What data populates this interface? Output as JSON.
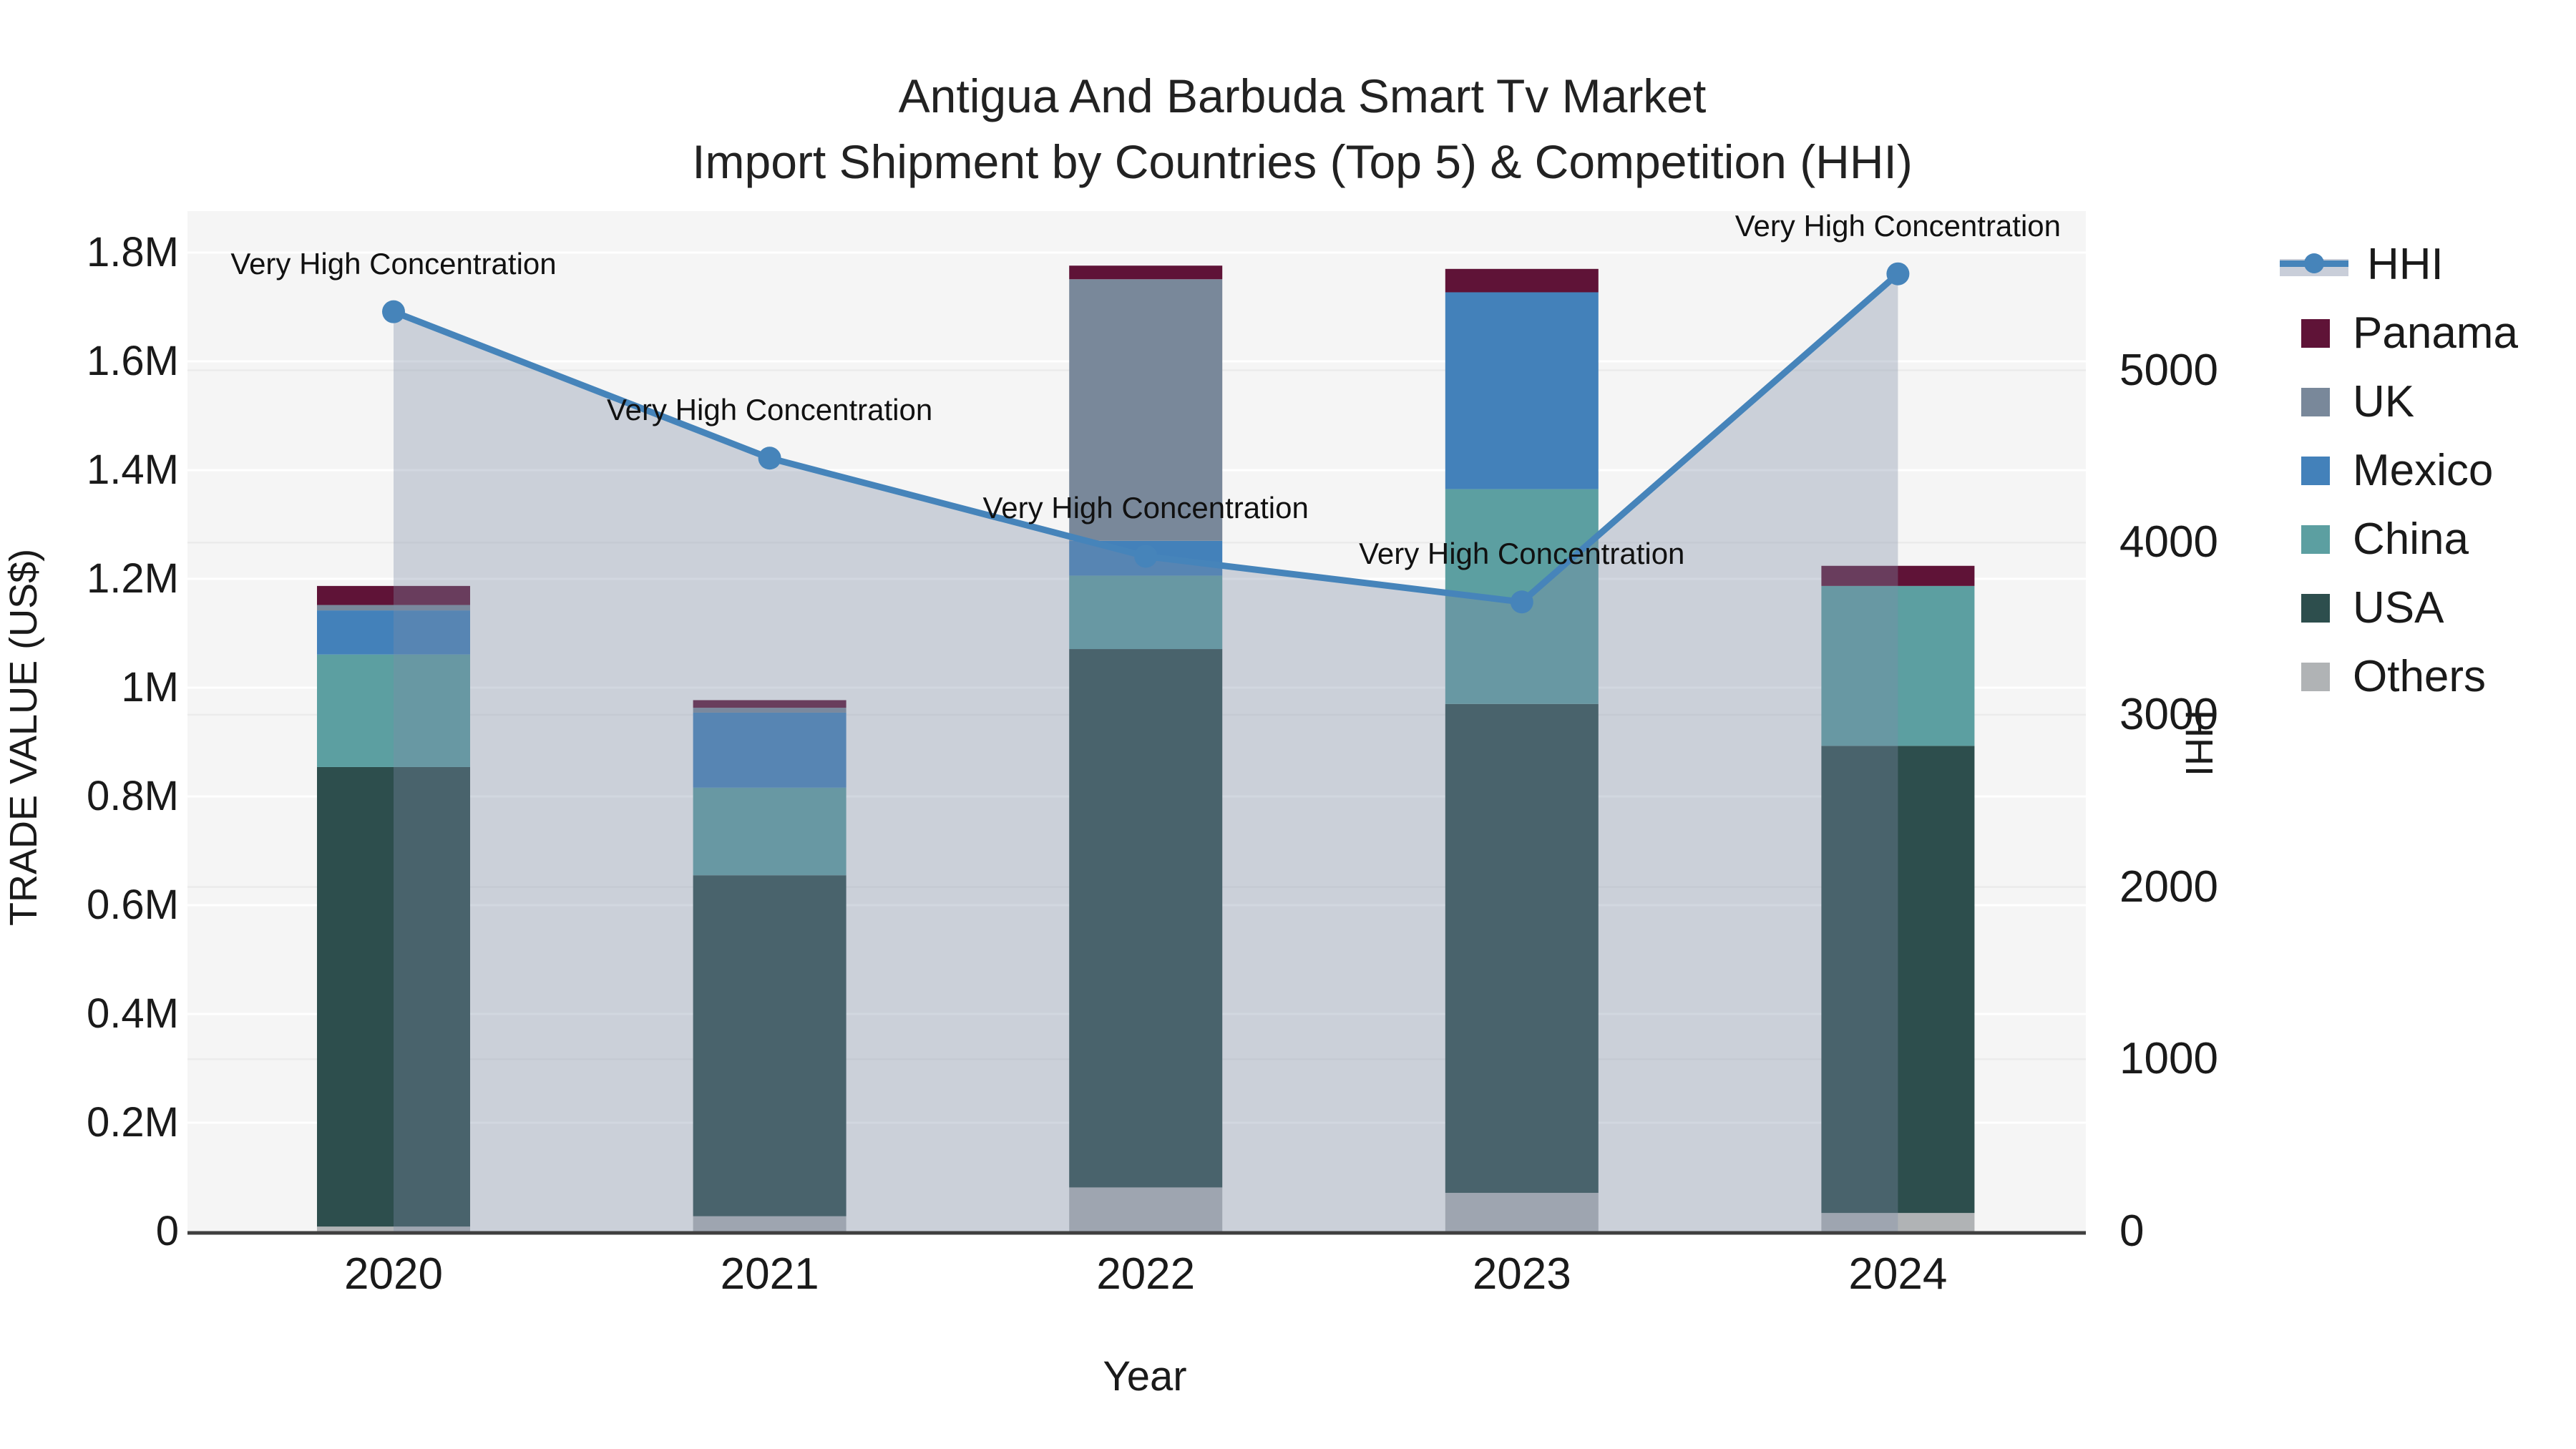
{
  "title": {
    "line1": "Antigua And Barbuda Smart Tv Market",
    "line2": "Import Shipment by Countries (Top 5) & Competition (HHI)"
  },
  "axes": {
    "left_label": "TRADE VALUE (US$)",
    "right_label": "HHI",
    "x_label": "Year"
  },
  "legend": {
    "items": [
      {
        "label": "HHI",
        "kind": "line",
        "color": "#4684ba"
      },
      {
        "label": "Panama",
        "kind": "square",
        "color": "#5f1337"
      },
      {
        "label": "UK",
        "kind": "square",
        "color": "#79889a"
      },
      {
        "label": "Mexico",
        "kind": "square",
        "color": "#4381ba"
      },
      {
        "label": "China",
        "kind": "square",
        "color": "#5c9fa1"
      },
      {
        "label": "USA",
        "kind": "square",
        "color": "#2d4e4d"
      },
      {
        "label": "Others",
        "kind": "square",
        "color": "#b0b3b5"
      }
    ]
  },
  "chart_data": {
    "type": "combo: stacked bar (left axis) + line with area fill (right axis)",
    "categories": [
      "2020",
      "2021",
      "2022",
      "2023",
      "2024"
    ],
    "bar_unit": "million US$",
    "series": [
      {
        "name": "Others",
        "color": "#b0b3b5",
        "values": [
          0.009,
          0.028,
          0.081,
          0.071,
          0.034
        ]
      },
      {
        "name": "USA",
        "color": "#2d4e4d",
        "values": [
          0.845,
          0.627,
          0.99,
          0.899,
          0.859
        ]
      },
      {
        "name": "China",
        "color": "#5c9fa1",
        "values": [
          0.207,
          0.161,
          0.135,
          0.395,
          0.294
        ]
      },
      {
        "name": "Mexico",
        "color": "#4381ba",
        "values": [
          0.081,
          0.138,
          0.064,
          0.362,
          0
        ]
      },
      {
        "name": "UK",
        "color": "#79889a",
        "values": [
          0.01,
          0.009,
          0.481,
          0,
          0
        ]
      },
      {
        "name": "Panama",
        "color": "#5f1337",
        "values": [
          0.035,
          0.014,
          0.025,
          0.043,
          0.037
        ]
      }
    ],
    "bar_totals": [
      1.187,
      0.977,
      1.776,
      1.77,
      1.224
    ],
    "line": {
      "name": "HHI",
      "color": "#4684ba",
      "area_fill": "rgba(125,140,165,0.35)",
      "values": [
        5340,
        4490,
        3920,
        3655,
        5560
      ],
      "annotation": "Very High Concentration"
    },
    "y_left": {
      "label": "TRADE VALUE (US$)",
      "tick_labels": [
        "0",
        "0.2M",
        "0.4M",
        "0.6M",
        "0.8M",
        "1M",
        "1.2M",
        "1.4M",
        "1.6M",
        "1.8M"
      ],
      "tick_values": [
        0,
        0.2,
        0.4,
        0.6,
        0.8,
        1,
        1.2,
        1.4,
        1.6,
        1.8
      ],
      "range": [
        0,
        1.877
      ]
    },
    "y_right": {
      "label": "HHI",
      "tick_labels": [
        "0",
        "1000",
        "2000",
        "3000",
        "4000",
        "5000"
      ],
      "tick_values": [
        0,
        1000,
        2000,
        3000,
        4000,
        5000
      ],
      "range": [
        0,
        5925
      ]
    },
    "x": {
      "label": "Year"
    },
    "grid": {
      "left_color": "#ffffff",
      "right_color": "#ebebeb",
      "plot_bg": "#f5f5f5",
      "axis_line": "#3f3f3f"
    },
    "legend_position": "right"
  }
}
